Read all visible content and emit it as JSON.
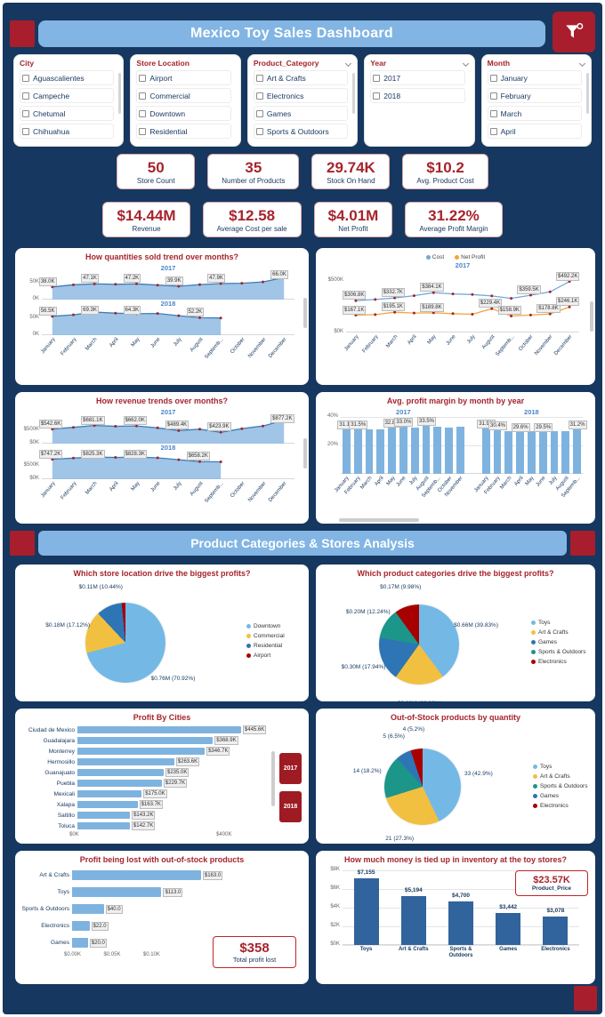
{
  "colors": {
    "background": "#16375F",
    "accent_red": "#A81E2C",
    "header_blue": "#82B5E3",
    "line_blue": "#3E7CB8",
    "bar_light_blue": "#7FB3DF",
    "marker_red": "#A6242C",
    "yellow": "#F2C040",
    "teal": "#1B9689",
    "mid_blue": "#2E75B6",
    "dark_red": "#A80000",
    "pie_light_blue": "#74B9E6"
  },
  "header": {
    "title": "Mexico Toy Sales Dashboard"
  },
  "section_header": {
    "title": "Product Categories & Stores Analysis"
  },
  "slicers": [
    {
      "title": "City",
      "items": [
        "Aguascalientes",
        "Campeche",
        "Chetumal",
        "Chihuahua"
      ],
      "has_chevron": false,
      "has_scrollbar": true
    },
    {
      "title": "Store Location",
      "items": [
        "Airport",
        "Commercial",
        "Downtown",
        "Residential"
      ],
      "has_chevron": false,
      "has_scrollbar": false
    },
    {
      "title": "Product_Category",
      "items": [
        "Art & Crafts",
        "Electronics",
        "Games",
        "Sports & Outdoors"
      ],
      "has_chevron": true,
      "has_scrollbar": true
    },
    {
      "title": "Year",
      "items": [
        "2017",
        "2018"
      ],
      "has_chevron": true,
      "has_scrollbar": false
    },
    {
      "title": "Month",
      "items": [
        "January",
        "February",
        "March",
        "April"
      ],
      "has_chevron": true,
      "has_scrollbar": true
    }
  ],
  "kpi_rows": [
    [
      {
        "value": "50",
        "label": "Store Count"
      },
      {
        "value": "35",
        "label": "Number of Products"
      },
      {
        "value": "29.74K",
        "label": "Stock On Hand"
      },
      {
        "value": "$10.2",
        "label": "Avg. Product Cost"
      }
    ],
    [
      {
        "value": "$14.44M",
        "label": "Revenue"
      },
      {
        "value": "$12.58",
        "label": "Average Cost per sale"
      },
      {
        "value": "$4.01M",
        "label": "Net Profit"
      },
      {
        "value": "31.22%",
        "label": "Average Profit Margin"
      }
    ]
  ],
  "chart_data": [
    {
      "id": "quantities_by_month",
      "type": "area",
      "title": "How quantities sold trend over months?",
      "x": [
        "January",
        "February",
        "March",
        "April",
        "May",
        "June",
        "July",
        "August",
        "Septemb...",
        "October",
        "November",
        "December"
      ],
      "ymax": 80,
      "yticks": [
        {
          "v": 50,
          "t": "50K"
        },
        {
          "v": 0,
          "t": "0K"
        }
      ],
      "series": [
        {
          "name": "2017",
          "values": [
            38.0,
            44.5,
            47.1,
            46.0,
            47.2,
            43.5,
            39.9,
            45.0,
            47.9,
            49.0,
            53.0,
            66.0
          ],
          "point_labels": [
            {
              "i": 0,
              "t": "38.0K"
            },
            {
              "i": 2,
              "t": "47.1K"
            },
            {
              "i": 4,
              "t": "47.2K"
            },
            {
              "i": 6,
              "t": "39.9K"
            },
            {
              "i": 8,
              "t": "47.9K"
            },
            {
              "i": 11,
              "t": "66.0K"
            }
          ]
        },
        {
          "name": "2018",
          "values": [
            56.5,
            61.0,
            69.3,
            66.0,
            64.3,
            65.0,
            58.5,
            52.2,
            51.5
          ],
          "point_labels": [
            {
              "i": 0,
              "t": "56.5K"
            },
            {
              "i": 2,
              "t": "69.3K"
            },
            {
              "i": 4,
              "t": "64.3K"
            },
            {
              "i": 7,
              "t": "52.2K"
            }
          ]
        }
      ]
    },
    {
      "id": "cost_and_net_profit",
      "type": "line",
      "title": "",
      "year_label": "2017",
      "legend": [
        {
          "name": "Cost",
          "color": "#6FA8DC"
        },
        {
          "name": "Net Profit",
          "color": "#EFA63C"
        }
      ],
      "x": [
        "January",
        "February",
        "March",
        "April",
        "May",
        "June",
        "July",
        "August",
        "Septemb...",
        "October",
        "November",
        "December"
      ],
      "ymax": 600,
      "yticks": [
        {
          "v": 500,
          "t": "$500K"
        },
        {
          "v": 0,
          "t": "$0K"
        }
      ],
      "series": [
        {
          "name": "Cost",
          "color": "#6FA8DC",
          "values": [
            306.8,
            318,
            332.7,
            355,
            384.1,
            372,
            366,
            352,
            329,
            359.5,
            392,
            492.2
          ],
          "point_labels": [
            {
              "i": 0,
              "t": "$306.8K"
            },
            {
              "i": 2,
              "t": "$332.7K"
            },
            {
              "i": 4,
              "t": "$384.1K"
            },
            {
              "i": 9,
              "t": "$359.5K"
            },
            {
              "i": 11,
              "t": "$492.2K"
            }
          ]
        },
        {
          "name": "Net Profit",
          "color": "#EFA63C",
          "values": [
            167.1,
            172,
            195.1,
            188,
            189.8,
            182,
            176,
            229.4,
            158.9,
            168,
            178.8,
            246.1
          ],
          "point_labels": [
            {
              "i": 0,
              "t": "$167.1K"
            },
            {
              "i": 2,
              "t": "$195.1K"
            },
            {
              "i": 4,
              "t": "$189.8K"
            },
            {
              "i": 7,
              "t": "$229.4K"
            },
            {
              "i": 8,
              "t": "$158.9K"
            },
            {
              "i": 10,
              "t": "$178.8K"
            },
            {
              "i": 11,
              "t": "$246.1K"
            }
          ]
        }
      ]
    },
    {
      "id": "revenue_by_month",
      "type": "area",
      "title": "How revenue trends over months?",
      "x": [
        "January",
        "February",
        "March",
        "April",
        "May",
        "June",
        "July",
        "August",
        "Septemb...",
        "October",
        "November",
        "December"
      ],
      "ymax": 1000,
      "yticks": [
        {
          "v": 500,
          "t": "$500K"
        },
        {
          "v": 0,
          "t": "$0K"
        }
      ],
      "series": [
        {
          "name": "2017",
          "values": [
            542.6,
            610,
            681.1,
            650,
            662.0,
            590,
            489.4,
            540,
            423.9,
            560,
            660,
            877.2
          ],
          "point_labels": [
            {
              "i": 0,
              "t": "$542.6K"
            },
            {
              "i": 2,
              "t": "$681.1K"
            },
            {
              "i": 4,
              "t": "$662.0K"
            },
            {
              "i": 6,
              "t": "$489.4K"
            },
            {
              "i": 8,
              "t": "$423.9K"
            },
            {
              "i": 11,
              "t": "$877.2K"
            }
          ]
        },
        {
          "name": "2018",
          "values": [
            747.2,
            790,
            825.3,
            815,
            828.3,
            800,
            730,
            658.2,
            650
          ],
          "point_labels": [
            {
              "i": 0,
              "t": "$747.2K"
            },
            {
              "i": 2,
              "t": "$825.3K"
            },
            {
              "i": 4,
              "t": "$828.3K"
            },
            {
              "i": 7,
              "t": "$658.2K"
            }
          ]
        }
      ]
    },
    {
      "id": "profit_margin_by_month",
      "type": "bar",
      "title": "Avg. profit margin by month by year",
      "bar_color": "#7FB3DF",
      "ymax": 40,
      "yticks": [
        {
          "v": 40,
          "t": "40%"
        },
        {
          "v": 20,
          "t": "20%"
        }
      ],
      "groups": [
        {
          "year": "2017",
          "x": [
            "January",
            "February",
            "March",
            "April",
            "May",
            "June",
            "July",
            "August",
            "Septemb...",
            "October",
            "November"
          ],
          "values": [
            31.1,
            31.5,
            31.0,
            31.3,
            32.8,
            33.0,
            32.6,
            33.5,
            33.1,
            32.8,
            33.2
          ],
          "bar_labels": [
            {
              "i": 0,
              "t": "31.1%"
            },
            {
              "i": 1,
              "t": "31.5%"
            },
            {
              "i": 4,
              "t": "32.8%"
            },
            {
              "i": 5,
              "t": "33.0%"
            },
            {
              "i": 7,
              "t": "33.5%"
            }
          ]
        },
        {
          "year": "2018",
          "x": [
            "January",
            "February",
            "March",
            "April",
            "May",
            "June",
            "July",
            "August",
            "Septemb..."
          ],
          "values": [
            31.9,
            30.4,
            29.9,
            29.6,
            30.1,
            29.5,
            30.0,
            30.3,
            31.2
          ],
          "bar_labels": [
            {
              "i": 0,
              "t": "31.9%"
            },
            {
              "i": 1,
              "t": "30.4%"
            },
            {
              "i": 3,
              "t": "29.6%"
            },
            {
              "i": 5,
              "t": "29.5%"
            },
            {
              "i": 8,
              "t": "31.2%"
            }
          ]
        }
      ]
    },
    {
      "id": "profit_by_store_location",
      "type": "pie",
      "title": "Which store location drive the biggest profits?",
      "slices": [
        {
          "name": "Downtown",
          "color": "#74B9E6",
          "pct": 70.92,
          "label": "$0.76M (70.92%)"
        },
        {
          "name": "Commercial",
          "color": "#F2C040",
          "pct": 17.12,
          "label": "$0.18M (17.12%)"
        },
        {
          "name": "Residential",
          "color": "#2E75B6",
          "pct": 10.44,
          "label": "$0.11M (10.44%)"
        },
        {
          "name": "Airport",
          "color": "#A80000",
          "pct": 1.52,
          "label": ""
        }
      ]
    },
    {
      "id": "profit_by_product_category",
      "type": "pie",
      "title": "Which product categories drive the biggest profits?",
      "slices": [
        {
          "name": "Toys",
          "color": "#74B9E6",
          "pct": 39.83,
          "label": "$0.66M (39.83%)"
        },
        {
          "name": "Art & Crafts",
          "color": "#F2C040",
          "pct": 20.02,
          "label": "$0.33M (20.02%)"
        },
        {
          "name": "Games",
          "color": "#2E75B6",
          "pct": 17.94,
          "label": "$0.30M (17.94%)"
        },
        {
          "name": "Sports & Outdoors",
          "color": "#1B9689",
          "pct": 12.24,
          "label": "$0.20M (12.24%)"
        },
        {
          "name": "Electronics",
          "color": "#A80000",
          "pct": 9.98,
          "label": "$0.17M (9.98%)"
        }
      ]
    },
    {
      "id": "profit_by_cities",
      "type": "bar-h",
      "title": "Profit By Cities",
      "bar_color": "#7FB3DF",
      "categories": [
        "Ciudad de Mexico",
        "Guadalajara",
        "Monterrey",
        "Hermosillo",
        "Guanajuato",
        "Puebla",
        "Mexicali",
        "Xalapa",
        "Saltillo",
        "Toluca"
      ],
      "values": [
        445.6,
        368.9,
        346.7,
        263.6,
        235.0,
        229.7,
        175.0,
        163.7,
        143.2,
        142.7
      ],
      "labels": [
        "$445.6K",
        "$368.9K",
        "$346.7K",
        "$263.6K",
        "$235.0K",
        "$229.7K",
        "$175.0K",
        "$163.7K",
        "$143.2K",
        "$142.7K"
      ],
      "xmax": 470,
      "xticks": [
        {
          "v": 0,
          "t": "$0K"
        },
        {
          "v": 400,
          "t": "$400K"
        }
      ],
      "year_filter": [
        "2017",
        "2018"
      ]
    },
    {
      "id": "out_of_stock_by_quantity",
      "type": "pie",
      "title": "Out-of-Stock products by quantity",
      "slices": [
        {
          "name": "Toys",
          "color": "#74B9E6",
          "pct": 42.9,
          "value": 33,
          "label": "33 (42.9%)"
        },
        {
          "name": "Art & Crafts",
          "color": "#F2C040",
          "pct": 27.3,
          "value": 21,
          "label": "21 (27.3%)"
        },
        {
          "name": "Sports & Outdoors",
          "color": "#1B9689",
          "pct": 18.2,
          "value": 14,
          "label": "14 (18.2%)"
        },
        {
          "name": "Games",
          "color": "#2E75B6",
          "pct": 6.5,
          "value": 5,
          "label": "5 (6.5%)"
        },
        {
          "name": "Electronics",
          "color": "#A80000",
          "pct": 5.2,
          "value": 4,
          "label": "4 (5.2%)"
        }
      ]
    },
    {
      "id": "profit_lost_out_of_stock",
      "type": "bar-h",
      "title": "Profit being lost with out-of-stock products",
      "bar_color": "#7FB3DF",
      "categories": [
        "Art & Crafts",
        "Toys",
        "Sports & Outdoors",
        "Electronics",
        "Games"
      ],
      "values": [
        163.0,
        113.0,
        40.0,
        22.0,
        20.0
      ],
      "labels": [
        "$163.0",
        "$113.0",
        "$40.0",
        "$22.0",
        "$20.0"
      ],
      "xmax": 180,
      "xticks": [
        {
          "v": 0,
          "t": "$0.00K"
        },
        {
          "v": 50,
          "t": "$0.05K"
        },
        {
          "v": 100,
          "t": "$0.10K"
        }
      ],
      "card": {
        "value": "$358",
        "label": "Total profit lost"
      }
    },
    {
      "id": "inventory_value",
      "type": "bar",
      "title": "How much money is tied up in inventory at the toy stores?",
      "bar_color": "#31639C",
      "categories": [
        "Toys",
        "Art & Crafts",
        "Sports & Outdoors",
        "Games",
        "Electronics"
      ],
      "values": [
        7155,
        5194,
        4700,
        3442,
        3078
      ],
      "labels": [
        "$7,155",
        "$5,194",
        "$4,700",
        "$3,442",
        "$3,078"
      ],
      "ymax": 8000,
      "yticks": [
        {
          "v": 8000,
          "t": "$8K"
        },
        {
          "v": 6000,
          "t": "$6K"
        },
        {
          "v": 4000,
          "t": "$4K"
        },
        {
          "v": 2000,
          "t": "$2K"
        },
        {
          "v": 0,
          "t": "$0K"
        }
      ],
      "card": {
        "value": "$23.57K",
        "label": "Product_Price"
      }
    }
  ]
}
